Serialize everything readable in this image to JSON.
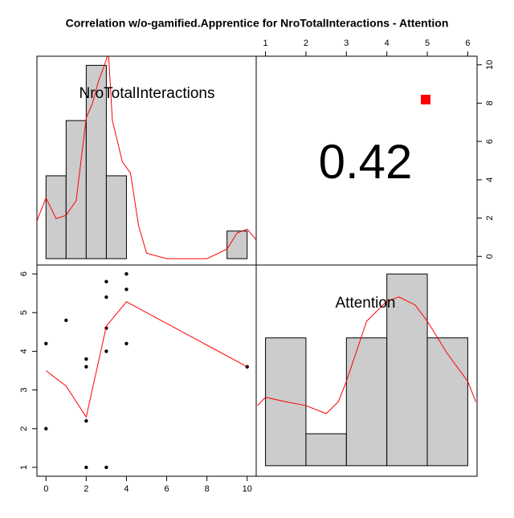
{
  "chart_data": {
    "type": "pairs",
    "title": "Correlation w/o-gamified.Apprentice for NroTotalInteractions - Attention",
    "variables": [
      {
        "name": "NroTotalInteractions",
        "lim": [
          -0.45,
          10.45
        ],
        "ticks": [
          0,
          2,
          4,
          6,
          8,
          10
        ]
      },
      {
        "name": "Attention",
        "lim": [
          0.77,
          6.23
        ],
        "ticks": [
          1,
          2,
          3,
          4,
          5,
          6
        ]
      }
    ],
    "correlation": 0.42,
    "color": "#cccccc",
    "line_color": "#ff0000",
    "sig_color": "#ff0000",
    "histograms": [
      {
        "bins": [
          0,
          1,
          2,
          3,
          4,
          5,
          6,
          7,
          8,
          9,
          10
        ],
        "counts": [
          3,
          5,
          7,
          3,
          0,
          0,
          0,
          0,
          0,
          1
        ],
        "ylim": [
          -0.23,
          7.33
        ],
        "density": {
          "x": [
            -0.5,
            0,
            0.5,
            1,
            1.5,
            2,
            2.3,
            2.6,
            3,
            3.1,
            3.3,
            3.8,
            4.2,
            4.6,
            5,
            6,
            8,
            9,
            9.5,
            10,
            10.5
          ],
          "values": [
            1.28,
            2.2,
            1.45,
            1.57,
            2.1,
            5.1,
            5.6,
            6.4,
            7.2,
            7.5,
            5,
            3.5,
            3.1,
            1.2,
            0.2,
            0,
            0,
            0.35,
            0.93,
            1.07,
            0.64
          ]
        }
      },
      {
        "bins": [
          1,
          2,
          3,
          4,
          5,
          6
        ],
        "counts": [
          4,
          1,
          4,
          6,
          4
        ],
        "ylim": [
          -0.33,
          6.28
        ],
        "density": {
          "x": [
            0.8,
            1,
            1.5,
            2,
            2.5,
            2.8,
            3,
            3.5,
            4,
            4.3,
            4.7,
            5,
            5.5,
            6,
            6.2
          ],
          "values": [
            1.88,
            2.14,
            2.0,
            1.88,
            1.63,
            2.0,
            2.64,
            4.52,
            5.15,
            5.28,
            5.03,
            4.52,
            3.5,
            2.64,
            2.0
          ]
        }
      }
    ],
    "scatter": {
      "x": [
        0,
        0,
        1,
        2,
        2,
        2,
        2,
        3,
        3,
        3,
        3,
        3,
        4,
        4,
        4,
        10
      ],
      "y": [
        4.2,
        2,
        4.8,
        3.8,
        3.6,
        2.2,
        1,
        5.8,
        5.4,
        4.6,
        4,
        1,
        6,
        5.6,
        4.2,
        3.6
      ]
    },
    "smooth": {
      "x": [
        0,
        1,
        2,
        3,
        4,
        10
      ],
      "values": [
        3.5,
        3.1,
        2.3,
        4.65,
        5.28,
        3.6
      ]
    }
  }
}
